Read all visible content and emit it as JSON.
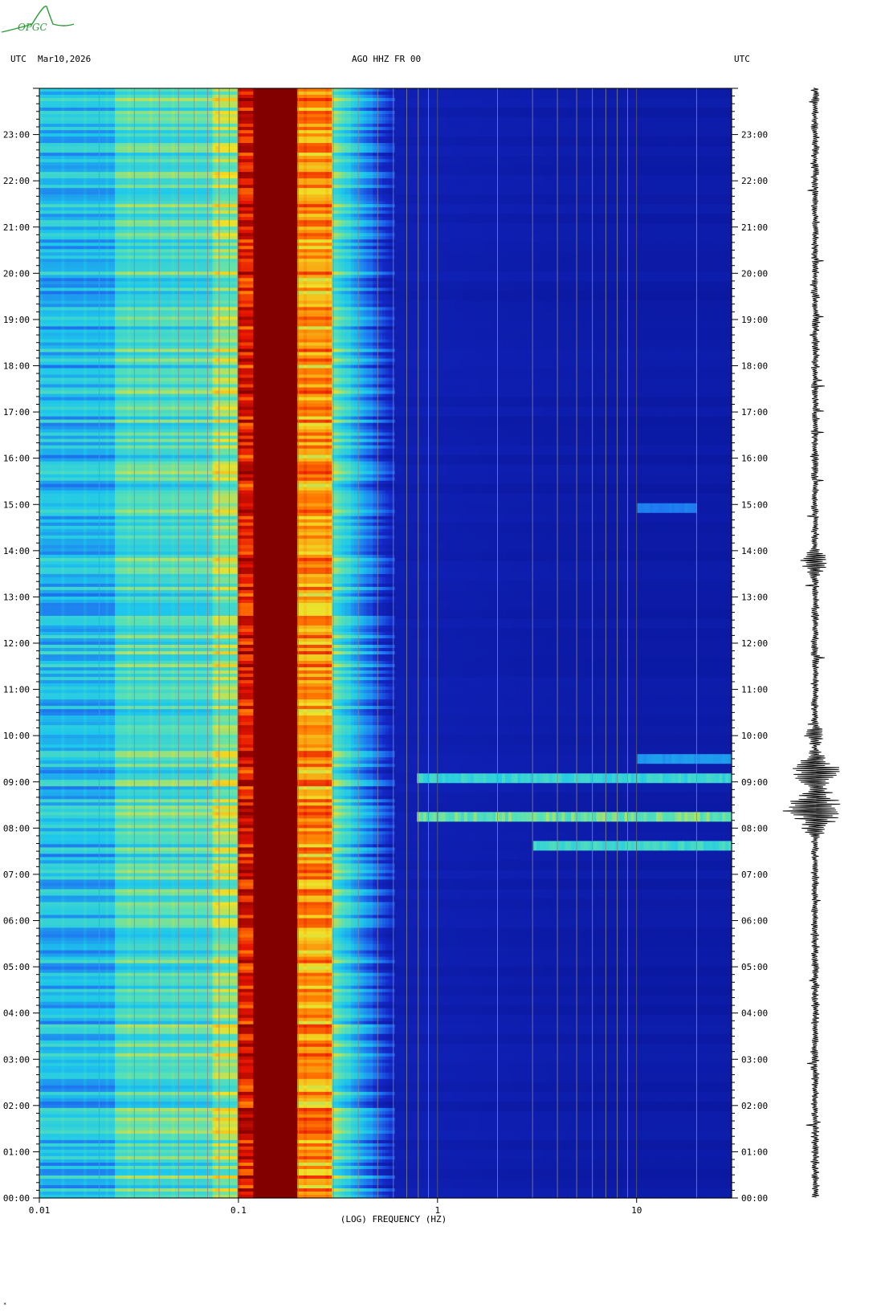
{
  "logo": {
    "text": "OPGC",
    "color": "#2e9b3a"
  },
  "header": {
    "left_tz": "UTC",
    "date": "Mar10,2026",
    "station": "AGO HHZ FR 00",
    "right_tz": "UTC"
  },
  "footer_mark": "*",
  "chart_data": {
    "type": "heatmap",
    "title": "AGO HHZ FR 00",
    "xlabel": "(LOG) FREQUENCY (HZ)",
    "x_scale": "log",
    "xlim": [
      0.01,
      30
    ],
    "x_ticks": [
      {
        "value": 0.01,
        "label": "0.01"
      },
      {
        "value": 0.1,
        "label": "0.1"
      },
      {
        "value": 1,
        "label": "1"
      },
      {
        "value": 10,
        "label": "10"
      }
    ],
    "ylim_hours": [
      0,
      24
    ],
    "y_ticks": [
      "00:00",
      "01:00",
      "02:00",
      "03:00",
      "04:00",
      "05:00",
      "06:00",
      "07:00",
      "08:00",
      "09:00",
      "10:00",
      "11:00",
      "12:00",
      "13:00",
      "14:00",
      "15:00",
      "16:00",
      "17:00",
      "18:00",
      "19:00",
      "20:00",
      "21:00",
      "22:00",
      "23:00"
    ],
    "colors": {
      "low": "#0a1ea8",
      "mid_low": "#1e90ff",
      "mid": "#22d8e8",
      "mid_high": "#f0e020",
      "high": "#ff2a00",
      "max": "#8b0000"
    },
    "frequency_bands": [
      {
        "f_from": 0.01,
        "f_to": 0.024,
        "level": "cyan"
      },
      {
        "f_from": 0.024,
        "f_to": 0.074,
        "level": "cyan-yellow"
      },
      {
        "f_from": 0.074,
        "f_to": 0.1,
        "level": "yellow"
      },
      {
        "f_from": 0.1,
        "f_to": 0.12,
        "level": "red"
      },
      {
        "f_from": 0.12,
        "f_to": 0.2,
        "level": "dark-red"
      },
      {
        "f_from": 0.2,
        "f_to": 0.3,
        "level": "red-yellow"
      },
      {
        "f_from": 0.3,
        "f_to": 0.5,
        "level": "cyan"
      },
      {
        "f_from": 0.5,
        "f_to": 30,
        "level": "dark-blue"
      }
    ],
    "events": [
      {
        "hour": 7.7,
        "f_from": 3,
        "f_to": 30,
        "intensity": 0.7
      },
      {
        "hour": 8.3,
        "f_from": 0.8,
        "f_to": 30,
        "intensity": 0.9
      },
      {
        "hour": 9.15,
        "f_from": 0.8,
        "f_to": 30,
        "intensity": 0.6
      },
      {
        "hour": 9.6,
        "f_from": 10,
        "f_to": 30,
        "intensity": 0.35
      },
      {
        "hour": 15.05,
        "f_from": 10,
        "f_to": 20,
        "intensity": 0.3
      }
    ],
    "seismogram_bursts": [
      {
        "hour": 8.4,
        "amplitude": 1.0,
        "width_hours": 0.6
      },
      {
        "hour": 9.2,
        "amplitude": 0.85,
        "width_hours": 0.5
      },
      {
        "hour": 13.75,
        "amplitude": 0.4,
        "width_hours": 0.3
      },
      {
        "hour": 10.0,
        "amplitude": 0.3,
        "width_hours": 0.2
      }
    ]
  }
}
